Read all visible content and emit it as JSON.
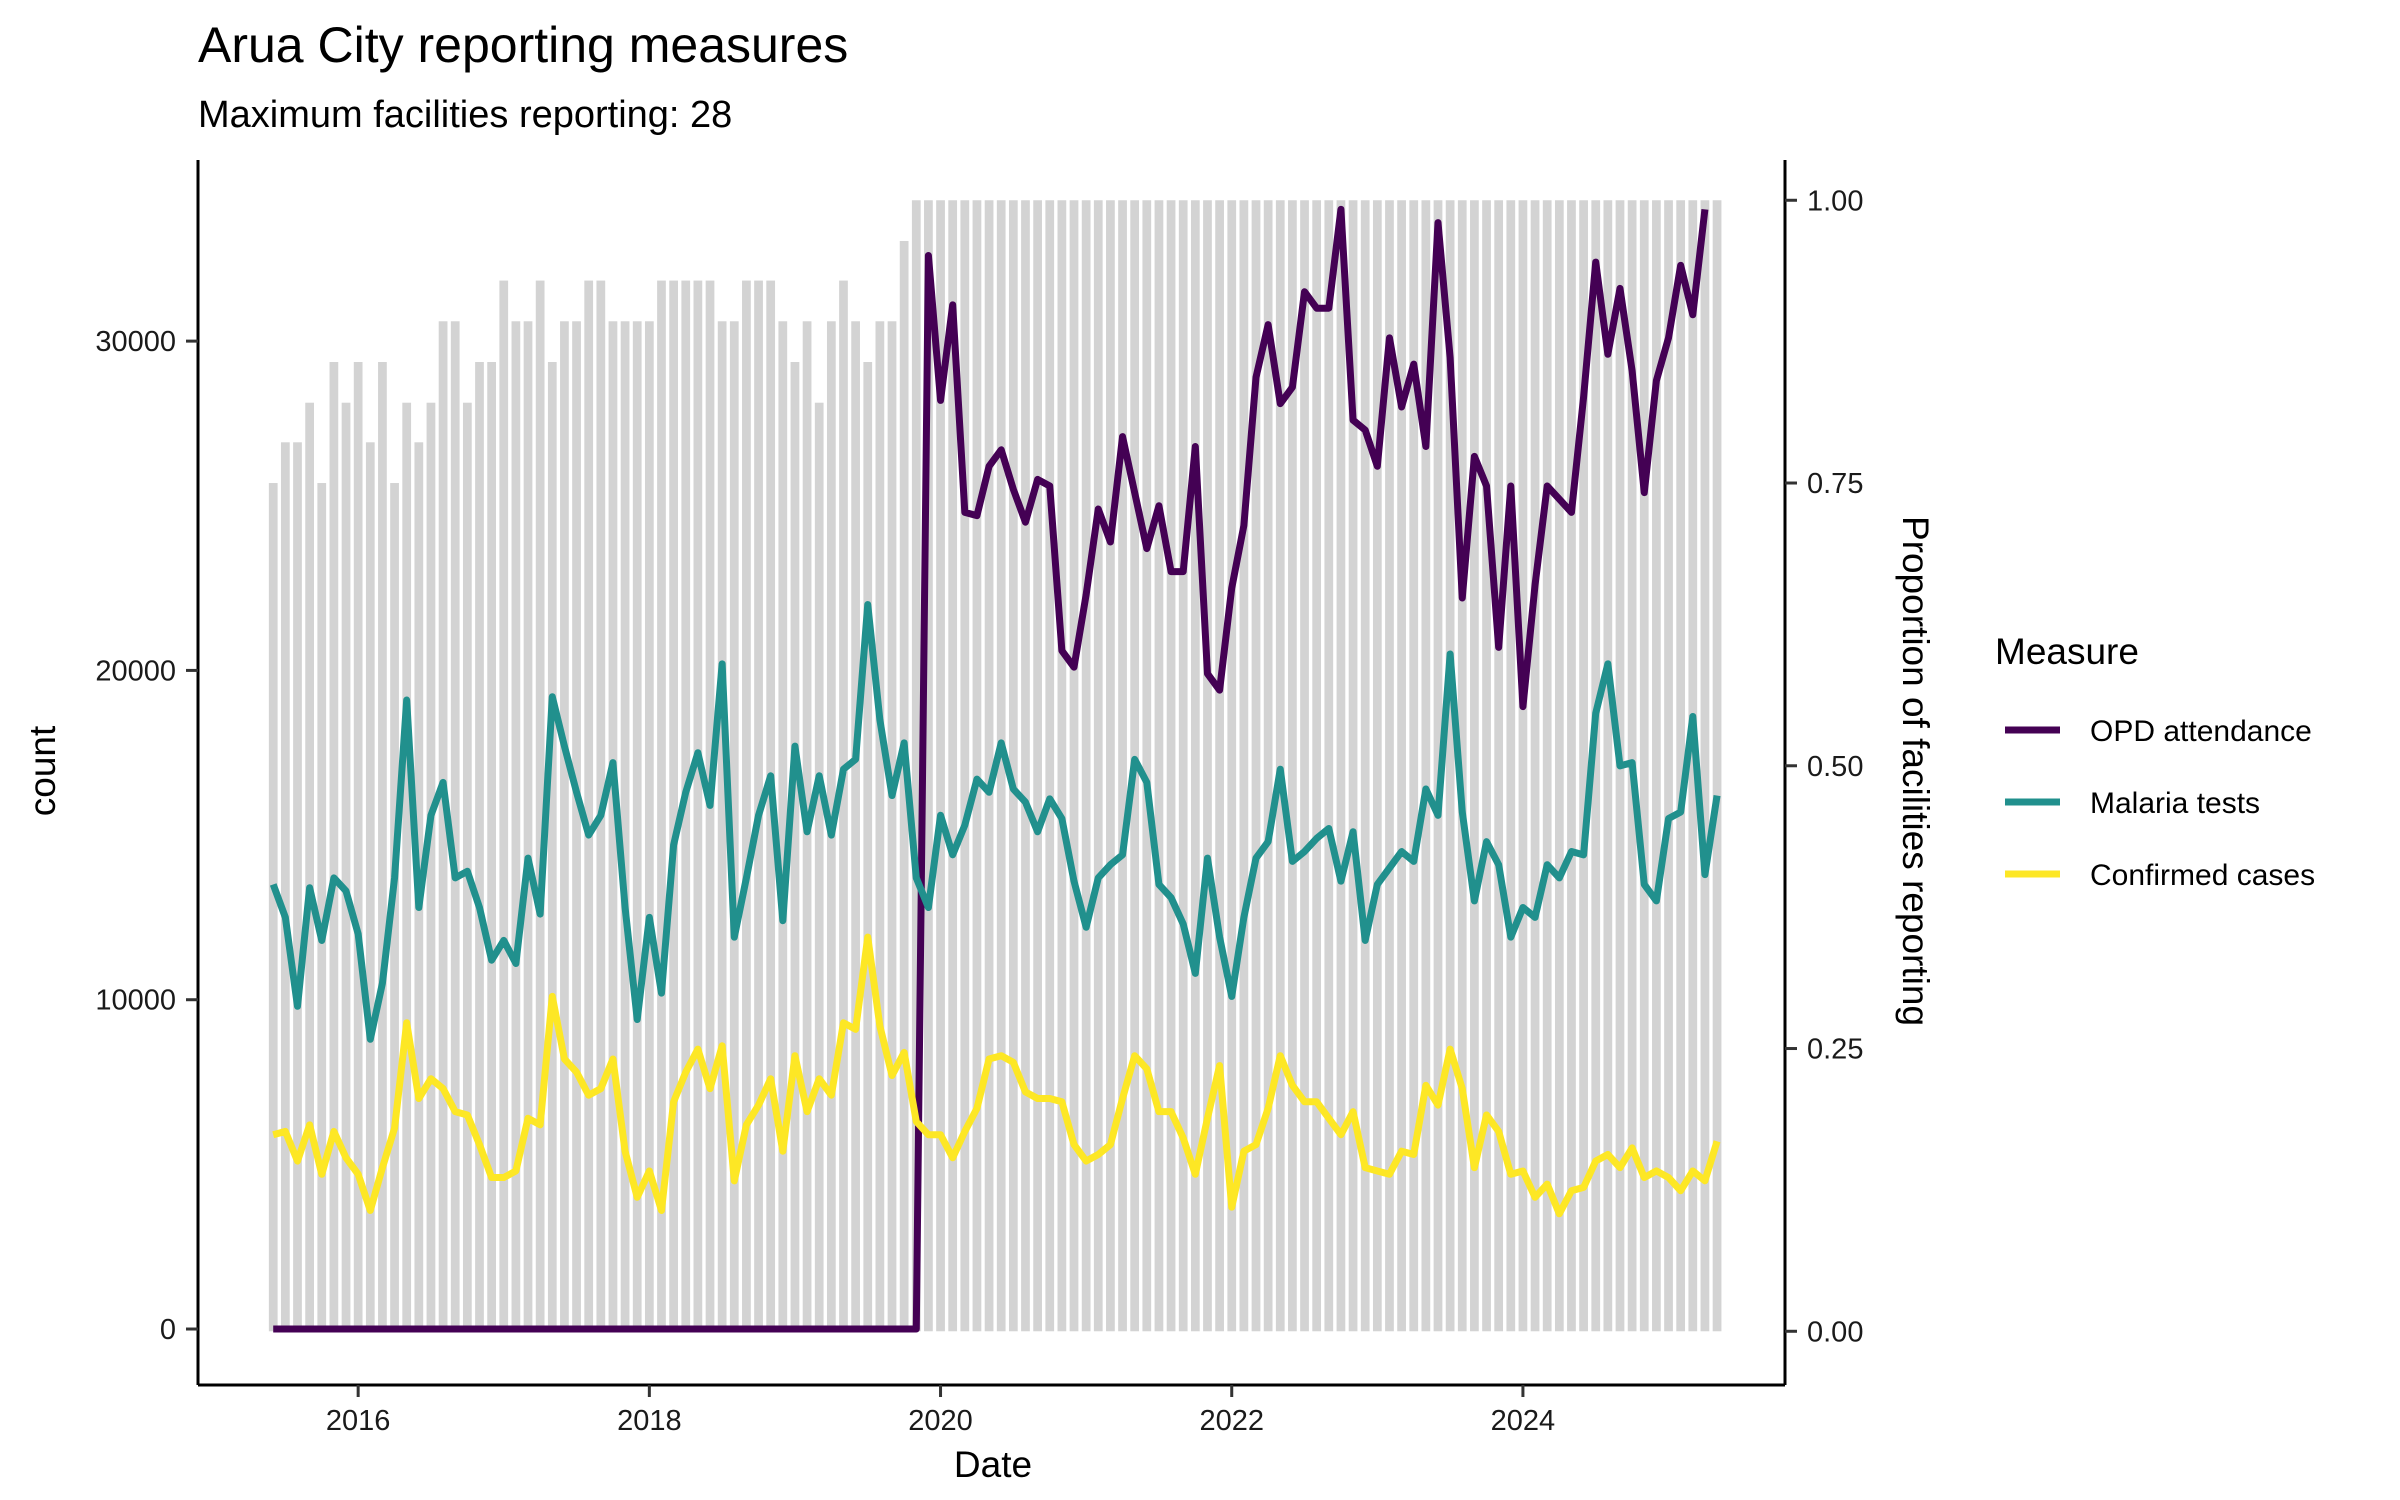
{
  "chart_data": {
    "type": "line",
    "title": "Arua City reporting measures",
    "subtitle": "Maximum facilities reporting: 28",
    "xlabel": "Date",
    "ylabel": "count",
    "y2label": "Proportion of facilities reporting",
    "xlim": [
      2014.9,
      2025.8
    ],
    "ylim": [
      -1700,
      35500
    ],
    "y2lim": [
      -0.0475,
      1.0356
    ],
    "x_ticks": [
      {
        "value": 2016,
        "label": "2016"
      },
      {
        "value": 2018,
        "label": "2018"
      },
      {
        "value": 2020,
        "label": "2020"
      },
      {
        "value": 2022,
        "label": "2022"
      },
      {
        "value": 2024,
        "label": "2024"
      }
    ],
    "y_ticks": [
      {
        "value": 0,
        "label": "0"
      },
      {
        "value": 10000,
        "label": "10000"
      },
      {
        "value": 20000,
        "label": "20000"
      },
      {
        "value": 30000,
        "label": "30000"
      }
    ],
    "y2_ticks": [
      {
        "value": 0,
        "label": "0.00"
      },
      {
        "value": 0.25,
        "label": "0.25"
      },
      {
        "value": 0.5,
        "label": "0.50"
      },
      {
        "value": 0.75,
        "label": "0.75"
      },
      {
        "value": 1,
        "label": "1.00"
      }
    ],
    "start_year": 2015,
    "start_month": 6,
    "legend": {
      "title": "Measure",
      "position": "right"
    },
    "bar_color": "#d3d3d3",
    "reporting_proportion": [
      0.75,
      0.786,
      0.786,
      0.821,
      0.75,
      0.857,
      0.821,
      0.857,
      0.786,
      0.857,
      0.75,
      0.821,
      0.786,
      0.821,
      0.893,
      0.893,
      0.821,
      0.857,
      0.857,
      0.929,
      0.893,
      0.893,
      0.929,
      0.857,
      0.893,
      0.893,
      0.929,
      0.929,
      0.893,
      0.893,
      0.893,
      0.893,
      0.929,
      0.929,
      0.929,
      0.929,
      0.929,
      0.893,
      0.893,
      0.929,
      0.929,
      0.929,
      0.893,
      0.857,
      0.893,
      0.821,
      0.893,
      0.929,
      0.893,
      0.857,
      0.893,
      0.893,
      0.964,
      1,
      1,
      1,
      1,
      1,
      1,
      1,
      1,
      1,
      1,
      1,
      1,
      1,
      1,
      1,
      1,
      1,
      1,
      1,
      1,
      1,
      1,
      1,
      1,
      1,
      1,
      1,
      1,
      1,
      1,
      1,
      1,
      1,
      1,
      1,
      1,
      1,
      1,
      1,
      1,
      1,
      1,
      1,
      1,
      1,
      1,
      1,
      1,
      1,
      1,
      1,
      1,
      1,
      1,
      1,
      1,
      1,
      1,
      1,
      1,
      1,
      1,
      1,
      1,
      1,
      1,
      1
    ],
    "series": [
      {
        "name": "OPD attendance",
        "color": "#440154",
        "values": [
          0,
          0,
          0,
          0,
          0,
          0,
          0,
          0,
          0,
          0,
          0,
          0,
          0,
          0,
          0,
          0,
          0,
          0,
          0,
          0,
          0,
          0,
          0,
          0,
          0,
          0,
          0,
          0,
          0,
          0,
          0,
          0,
          0,
          0,
          0,
          0,
          0,
          0,
          0,
          0,
          0,
          0,
          0,
          0,
          0,
          0,
          0,
          0,
          0,
          0,
          0,
          0,
          0,
          0,
          32600,
          28200,
          31100,
          24800,
          24700,
          26200,
          26700,
          25500,
          24500,
          25800,
          25600,
          20600,
          20100,
          22300,
          24900,
          23900,
          27100,
          25400,
          23700,
          25000,
          23000,
          23000,
          26800,
          19900,
          19400,
          22500,
          24400,
          28900,
          30500,
          28100,
          28600,
          31500,
          31000,
          31000,
          34000,
          27600,
          27300,
          26200,
          30100,
          28000,
          29300,
          26800,
          33600,
          29500,
          22200,
          26500,
          25600,
          20700,
          25600,
          18900,
          22600,
          25600,
          25200,
          24800,
          28300,
          32400,
          29600,
          31600,
          29100,
          25400,
          28800,
          30100,
          32300,
          30800,
          34000
        ]
      },
      {
        "name": "Malaria tests",
        "color": "#21908d",
        "values": [
          13500,
          12500,
          9800,
          13400,
          11800,
          13700,
          13300,
          12000,
          8800,
          10500,
          13700,
          19100,
          12800,
          15600,
          16600,
          13700,
          13900,
          12800,
          11200,
          11800,
          11100,
          14300,
          12600,
          19200,
          17700,
          16300,
          15000,
          15600,
          17200,
          12800,
          9400,
          12500,
          10200,
          14700,
          16300,
          17500,
          15900,
          20200,
          11900,
          13700,
          15600,
          16800,
          12400,
          17700,
          15100,
          16800,
          15000,
          17000,
          17300,
          22000,
          18500,
          16200,
          17800,
          13700,
          12800,
          15600,
          14400,
          15300,
          16700,
          16300,
          17800,
          16400,
          16000,
          15100,
          16100,
          15500,
          13600,
          12200,
          13700,
          14100,
          14400,
          17300,
          16600,
          13500,
          13100,
          12300,
          10800,
          14300,
          11900,
          10100,
          12500,
          14300,
          14800,
          17000,
          14200,
          14500,
          14900,
          15200,
          13600,
          15100,
          11800,
          13500,
          14000,
          14500,
          14200,
          16400,
          15600,
          20500,
          15700,
          13000,
          14800,
          14100,
          11900,
          12800,
          12500,
          14100,
          13700,
          14500,
          14400,
          18700,
          20200,
          17100,
          17200,
          13500,
          13000,
          15500,
          15700,
          18600,
          13800,
          16200
        ]
      },
      {
        "name": "Confirmed cases",
        "color": "#fde725",
        "values": [
          5900,
          6000,
          5100,
          6200,
          4700,
          6000,
          5200,
          4700,
          3600,
          4900,
          6100,
          9300,
          7000,
          7600,
          7300,
          6600,
          6500,
          5600,
          4600,
          4600,
          4800,
          6400,
          6200,
          10100,
          8200,
          7800,
          7100,
          7300,
          8200,
          5400,
          4000,
          4800,
          3600,
          6900,
          7800,
          8500,
          7300,
          8600,
          4500,
          6200,
          6800,
          7600,
          5400,
          8300,
          6600,
          7600,
          7100,
          9300,
          9100,
          11900,
          9200,
          7700,
          8400,
          6300,
          5900,
          5900,
          5200,
          6000,
          6700,
          8200,
          8300,
          8100,
          7200,
          7000,
          7000,
          6900,
          5600,
          5100,
          5300,
          5600,
          7000,
          8300,
          7900,
          6600,
          6600,
          5800,
          4700,
          6400,
          8000,
          3700,
          5400,
          5600,
          6700,
          8300,
          7400,
          6900,
          6900,
          6400,
          5900,
          6600,
          4900,
          4800,
          4700,
          5400,
          5300,
          7400,
          6800,
          8500,
          7300,
          4900,
          6500,
          6000,
          4700,
          4800,
          4000,
          4400,
          3500,
          4200,
          4300,
          5100,
          5300,
          4900,
          5500,
          4600,
          4800,
          4600,
          4200,
          4800,
          4500,
          5700
        ]
      }
    ]
  }
}
